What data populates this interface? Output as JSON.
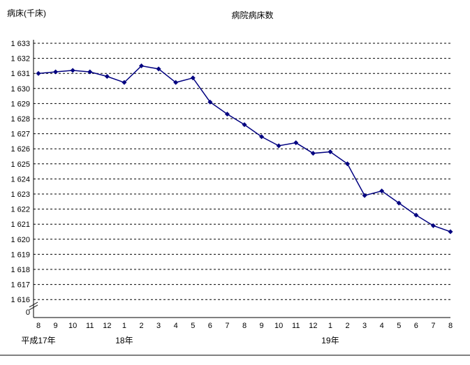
{
  "chart_data": {
    "type": "line",
    "title": "病院病床数",
    "y_unit_label": "病床(千床)",
    "categories": [
      "8",
      "9",
      "10",
      "11",
      "12",
      "1",
      "2",
      "3",
      "4",
      "5",
      "6",
      "7",
      "8",
      "9",
      "10",
      "11",
      "12",
      "1",
      "2",
      "3",
      "4",
      "5",
      "6",
      "7",
      "8"
    ],
    "values": [
      1631.0,
      1631.1,
      1631.2,
      1631.1,
      1630.8,
      1630.4,
      1631.5,
      1631.3,
      1630.4,
      1630.7,
      1629.1,
      1628.3,
      1627.6,
      1626.8,
      1626.2,
      1626.4,
      1625.7,
      1625.8,
      1625.0,
      1622.9,
      1623.2,
      1622.4,
      1621.6,
      1620.9,
      1620.5
    ],
    "era_labels": [
      {
        "label": "平成17年",
        "index": 0
      },
      {
        "label": "18年",
        "index": 5
      },
      {
        "label": "19年",
        "index": 17
      }
    ],
    "y_ticks": [
      {
        "label": "1 633",
        "value": 1633
      },
      {
        "label": "1 632",
        "value": 1632
      },
      {
        "label": "1 631",
        "value": 1631
      },
      {
        "label": "1 630",
        "value": 1630
      },
      {
        "label": "1 629",
        "value": 1629
      },
      {
        "label": "1 628",
        "value": 1628
      },
      {
        "label": "1 627",
        "value": 1627
      },
      {
        "label": "1 626",
        "value": 1626
      },
      {
        "label": "1 625",
        "value": 1625
      },
      {
        "label": "1 624",
        "value": 1624
      },
      {
        "label": "1 623",
        "value": 1623
      },
      {
        "label": "1 622",
        "value": 1622
      },
      {
        "label": "1 621",
        "value": 1621
      },
      {
        "label": "1 620",
        "value": 1620
      },
      {
        "label": "1 619",
        "value": 1619
      },
      {
        "label": "1 618",
        "value": 1618
      },
      {
        "label": "1 617",
        "value": 1617
      },
      {
        "label": "1 616",
        "value": 1616
      },
      {
        "label": "0",
        "value": 0
      }
    ],
    "ylim": [
      1616,
      1633
    ],
    "axis_break": true,
    "grid": "dashed-horizontal",
    "legend": "none",
    "line_color": "#000080",
    "marker": "diamond"
  }
}
